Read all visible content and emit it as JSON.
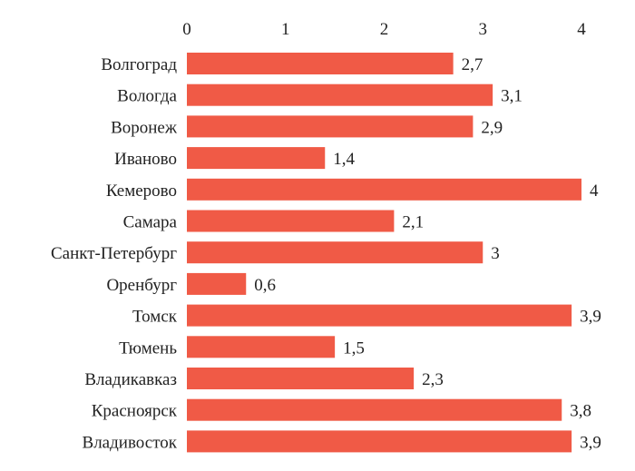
{
  "chart_data": {
    "type": "bar",
    "orientation": "horizontal",
    "categories": [
      "Волгоград",
      "Вологда",
      "Воронеж",
      "Иваново",
      "Кемерово",
      "Самара",
      "Санкт-Петербург",
      "Оренбург",
      "Томск",
      "Тюмень",
      "Владикавказ",
      "Красноярск",
      "Владивосток"
    ],
    "values": [
      2.7,
      3.1,
      2.9,
      1.4,
      4,
      2.1,
      3,
      0.6,
      3.9,
      1.5,
      2.3,
      3.8,
      3.9
    ],
    "value_labels": [
      "2,7",
      "3,1",
      "2,9",
      "1,4",
      "4",
      "2,1",
      "3",
      "0,6",
      "3,9",
      "1,5",
      "2,3",
      "3,8",
      "3,9"
    ],
    "xticks": [
      0,
      1,
      2,
      3,
      4
    ],
    "xtick_labels": [
      "0",
      "1",
      "2",
      "3",
      "4"
    ],
    "xlim": [
      0,
      4
    ],
    "x_axis_position": "top",
    "grid": false,
    "title": "",
    "xlabel": "",
    "ylabel": "",
    "bar_color": "#f05a46"
  }
}
